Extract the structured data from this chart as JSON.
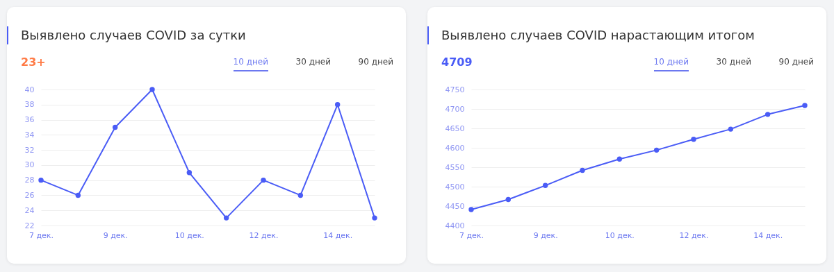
{
  "chart_data": [
    {
      "type": "line",
      "title": "Выявлено случаев COVID за сутки",
      "subtitle": "23+",
      "annotations": [
        "10 дней",
        "30 дней",
        "90 дней"
      ],
      "categories": [
        "7 дек.",
        null,
        "9 дек.",
        null,
        "10 дек.",
        null,
        "12 дек.",
        null,
        "14 дек.",
        null
      ],
      "series": [
        {
          "color": "#4a5cf6",
          "values": [
            28,
            26,
            35,
            40,
            29,
            23,
            28,
            26,
            38,
            23
          ]
        }
      ],
      "ylim": [
        22,
        40
      ],
      "yticks": [
        22,
        24,
        26,
        28,
        30,
        32,
        34,
        36,
        38,
        40
      ],
      "grid": "y",
      "marker": "circle",
      "line_style": "solid"
    },
    {
      "type": "line",
      "title": "Выявлено случаев COVID нарастающим итогом",
      "subtitle": "4709",
      "annotations": [
        "10 дней",
        "30 дней",
        "90 дней"
      ],
      "categories": [
        "7 дек.",
        null,
        "9 дек.",
        null,
        "10 дек.",
        null,
        "12 дек.",
        null,
        "14 дек.",
        null
      ],
      "series": [
        {
          "color": "#4a5cf6",
          "values": [
            4441,
            4467,
            4503,
            4542,
            4571,
            4594,
            4622,
            4648,
            4686,
            4709
          ]
        }
      ],
      "ylim": [
        4400,
        4750
      ],
      "yticks": [
        4400,
        4450,
        4500,
        4550,
        4600,
        4650,
        4700,
        4750
      ],
      "grid": "y",
      "marker": "circle",
      "line_style": "solid"
    }
  ]
}
